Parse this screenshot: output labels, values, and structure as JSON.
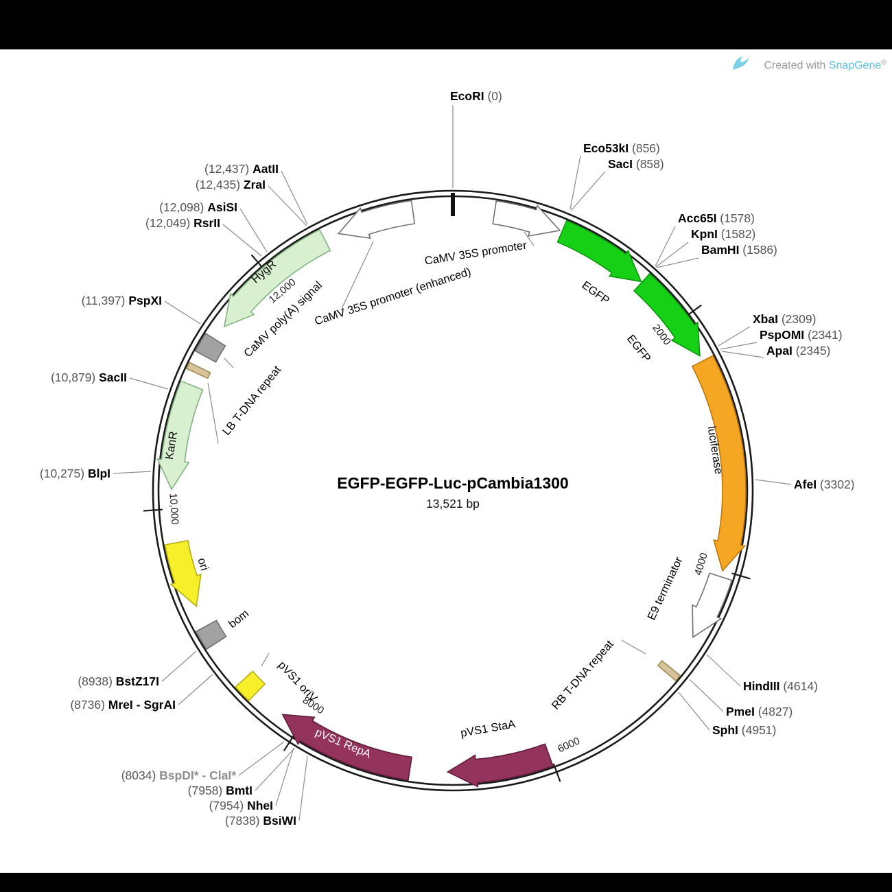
{
  "header": {
    "credit_prefix": "Created with ",
    "credit_brand": "SnapGene",
    "credit_reg": "®",
    "brand_color": "#5fc3df"
  },
  "plasmid": {
    "name": "EGFP-EGFP-Luc-pCambia1300",
    "size_label": "13,521 bp",
    "length_bp": 13521
  },
  "scale": {
    "ticks": [
      {
        "label": "2000",
        "bp": 2000
      },
      {
        "label": "4000",
        "bp": 4000
      },
      {
        "label": "6000",
        "bp": 6000
      },
      {
        "label": "8000",
        "bp": 8000
      },
      {
        "label": "10,000",
        "bp": 10000
      },
      {
        "label": "12,000",
        "bp": 12000
      }
    ]
  },
  "features": [
    {
      "id": "camv-35s-promoter",
      "label": "CaMV 35S promoter",
      "start": 320,
      "end": 840,
      "dir": "cw",
      "shape": "arrow",
      "fill": "#ffffff",
      "stroke": "#707070"
    },
    {
      "id": "egfp-1",
      "label": "EGFP",
      "start": 858,
      "end": 1577,
      "dir": "cw",
      "shape": "arrow",
      "fill": "#16d016",
      "stroke": "#0d940d"
    },
    {
      "id": "egfp-2",
      "label": "EGFP",
      "start": 1586,
      "end": 2305,
      "dir": "cw",
      "shape": "arrow",
      "fill": "#16d016",
      "stroke": "#0d940d"
    },
    {
      "id": "luciferase",
      "label": "luciferase",
      "start": 2350,
      "end": 4003,
      "dir": "cw",
      "shape": "arrow",
      "fill": "#f5a623",
      "stroke": "#b9770e"
    },
    {
      "id": "e9-terminator",
      "label": "E9 terminator",
      "start": 4050,
      "end": 4560,
      "dir": "cw",
      "shape": "arrow",
      "fill": "#ffffff",
      "stroke": "#707070"
    },
    {
      "id": "rb-t-dna-repeat",
      "label": "RB T-DNA repeat",
      "start": 4850,
      "end": 4900,
      "dir": "none",
      "shape": "block",
      "fill": "#d8c49c",
      "stroke": "#a08b55"
    },
    {
      "id": "pvs1-staa",
      "label": "pVS1 StaA",
      "start": 6010,
      "end": 6800,
      "dir": "cw",
      "shape": "arrow",
      "fill": "#94335c",
      "stroke": "#5e1d3a"
    },
    {
      "id": "pvs1-repa",
      "label": "pVS1 RepA",
      "start": 7090,
      "end": 8160,
      "dir": "cw",
      "shape": "arrow",
      "fill": "#94335c",
      "stroke": "#5e1d3a"
    },
    {
      "id": "pvs1-oriv",
      "label": "pVS1 oriV",
      "start": 8420,
      "end": 8560,
      "dir": "none",
      "shape": "block",
      "fill": "#f7ef2a",
      "stroke": "#b6ad14"
    },
    {
      "id": "bom",
      "label": "bom",
      "start": 8910,
      "end": 9060,
      "dir": "none",
      "shape": "block",
      "fill": "#a2a2a2",
      "stroke": "#6f6f6f"
    },
    {
      "id": "ori",
      "label": "ori",
      "start": 9230,
      "end": 9740,
      "dir": "ccw",
      "shape": "arrow",
      "fill": "#f7ef2a",
      "stroke": "#b6ad14"
    },
    {
      "id": "kanr",
      "label": "KanR",
      "start": 10150,
      "end": 10965,
      "dir": "ccw",
      "shape": "arrow",
      "fill": "#d8efd0",
      "stroke": "#84b284"
    },
    {
      "id": "camv-polya-signal",
      "label": "CaMV poly(A) signal",
      "start": 11210,
      "end": 11360,
      "dir": "none",
      "shape": "block",
      "fill": "#a2a2a2",
      "stroke": "#6f6f6f"
    },
    {
      "id": "lb-t-dna-repeat",
      "label": "LB T-DNA repeat",
      "start": 11065,
      "end": 11115,
      "dir": "none",
      "shape": "block",
      "fill": "#d8c49c",
      "stroke": "#a08b55"
    },
    {
      "id": "hygr",
      "label": "HygR",
      "start": 11480,
      "end": 12505,
      "dir": "ccw",
      "shape": "arrow",
      "fill": "#d8efd0",
      "stroke": "#84b284"
    },
    {
      "id": "camv-35s-promoter-enhanced",
      "label": "CaMV 35S promoter (enhanced)",
      "start": 12620,
      "end": 13215,
      "dir": "ccw",
      "shape": "arrow",
      "fill": "#ffffff",
      "stroke": "#707070"
    }
  ],
  "enzymes": [
    {
      "pre": "",
      "name": "EcoRI",
      "post": " (0)",
      "bp": 0
    },
    {
      "pre": "",
      "name": "Eco53kI",
      "post": " (856)",
      "bp": 856
    },
    {
      "pre": "",
      "name": "SacI",
      "post": " (858)",
      "bp": 858
    },
    {
      "pre": "",
      "name": "Acc65I",
      "post": " (1578)",
      "bp": 1578
    },
    {
      "pre": "",
      "name": "KpnI",
      "post": " (1582)",
      "bp": 1582
    },
    {
      "pre": "",
      "name": "BamHI",
      "post": " (1586)",
      "bp": 1586
    },
    {
      "pre": "",
      "name": "XbaI",
      "post": " (2309)",
      "bp": 2309
    },
    {
      "pre": "",
      "name": "PspOMI",
      "post": " (2341)",
      "bp": 2341
    },
    {
      "pre": "",
      "name": "ApaI",
      "post": " (2345)",
      "bp": 2345
    },
    {
      "pre": "",
      "name": "AfeI",
      "post": " (3302)",
      "bp": 3302
    },
    {
      "pre": "",
      "name": "HindIII",
      "post": " (4614)",
      "bp": 4614
    },
    {
      "pre": "",
      "name": "PmeI",
      "post": " (4827)",
      "bp": 4827
    },
    {
      "pre": "",
      "name": "SphI",
      "post": " (4951)",
      "bp": 4951
    },
    {
      "pre": "(7838) ",
      "name": "BsiWI",
      "post": "",
      "bp": 7838
    },
    {
      "pre": "(7954) ",
      "name": "NheI",
      "post": "",
      "bp": 7954
    },
    {
      "pre": "(7958) ",
      "name": "BmtI",
      "post": "",
      "bp": 7958
    },
    {
      "pre": "(8034) ",
      "name": "BspDI* - ClaI*",
      "post": "",
      "bp": 8034
    },
    {
      "pre": "(8736) ",
      "name": "MreI - SgrAI",
      "post": "",
      "bp": 8736
    },
    {
      "pre": "(8938) ",
      "name": "BstZ17I",
      "post": "",
      "bp": 8938
    },
    {
      "pre": "(10,275) ",
      "name": "BlpI",
      "post": "",
      "bp": 10275
    },
    {
      "pre": "(10,879) ",
      "name": "SacII",
      "post": "",
      "bp": 10879
    },
    {
      "pre": "(11,397) ",
      "name": "PspXI",
      "post": "",
      "bp": 11397
    },
    {
      "pre": "(12,049) ",
      "name": "RsrII",
      "post": "",
      "bp": 12049
    },
    {
      "pre": "(12,098) ",
      "name": "AsiSI",
      "post": "",
      "bp": 12098
    },
    {
      "pre": "(12,435) ",
      "name": "ZraI",
      "post": "",
      "bp": 12435
    },
    {
      "pre": "(12,437) ",
      "name": "AatII",
      "post": "",
      "bp": 12437
    }
  ]
}
